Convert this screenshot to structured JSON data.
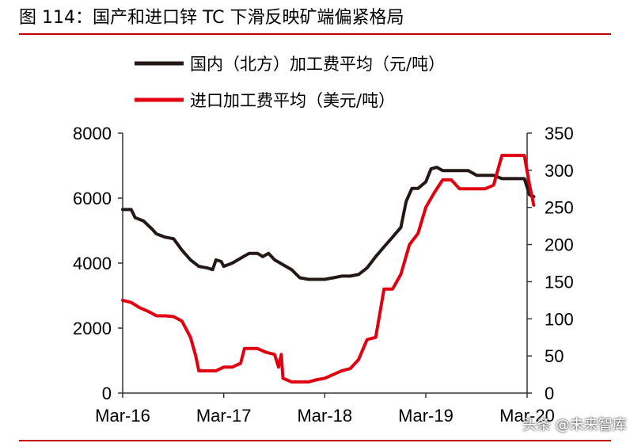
{
  "figure": {
    "title": "图 114：国产和进口锌 TC 下滑反映矿端偏紧格局"
  },
  "watermark": "头条 @未来智库",
  "chart_data": {
    "type": "line",
    "title": "图 114：国产和进口锌 TC 下滑反映矿端偏紧格局",
    "legend_position": "top",
    "x_tick_labels": [
      "Mar-16",
      "Mar-17",
      "Mar-18",
      "Mar-19",
      "Mar-20"
    ],
    "x_range": [
      "2016-03",
      "2020-03"
    ],
    "y_left": {
      "range": [
        0,
        8000
      ],
      "ticks": [
        "0",
        "2000",
        "4000",
        "6000",
        "8000"
      ]
    },
    "y_right": {
      "range": [
        0,
        350
      ],
      "ticks": [
        "0",
        "50",
        "100",
        "150",
        "200",
        "250",
        "300",
        "350"
      ]
    },
    "grid": false,
    "series": [
      {
        "name": "国内（北方）加工费平均（元/吨）",
        "axis": "left",
        "color": "#231815",
        "points": [
          [
            "2016-03-01",
            5650
          ],
          [
            "2016-04-01",
            5650
          ],
          [
            "2016-04-15",
            5400
          ],
          [
            "2016-05-15",
            5300
          ],
          [
            "2016-06-15",
            5050
          ],
          [
            "2016-07-01",
            4900
          ],
          [
            "2016-08-01",
            4800
          ],
          [
            "2016-09-01",
            4750
          ],
          [
            "2016-10-01",
            4400
          ],
          [
            "2016-11-01",
            4100
          ],
          [
            "2016-12-01",
            3900
          ],
          [
            "2017-01-01",
            3850
          ],
          [
            "2017-01-20",
            3800
          ],
          [
            "2017-02-01",
            4100
          ],
          [
            "2017-02-20",
            4050
          ],
          [
            "2017-03-01",
            3900
          ],
          [
            "2017-04-01",
            4000
          ],
          [
            "2017-05-01",
            4150
          ],
          [
            "2017-06-01",
            4300
          ],
          [
            "2017-07-01",
            4300
          ],
          [
            "2017-07-20",
            4200
          ],
          [
            "2017-08-10",
            4300
          ],
          [
            "2017-09-01",
            4100
          ],
          [
            "2017-10-01",
            3950
          ],
          [
            "2017-11-01",
            3800
          ],
          [
            "2017-12-01",
            3550
          ],
          [
            "2018-01-01",
            3500
          ],
          [
            "2018-02-01",
            3500
          ],
          [
            "2018-03-01",
            3500
          ],
          [
            "2018-04-01",
            3550
          ],
          [
            "2018-05-01",
            3600
          ],
          [
            "2018-06-01",
            3600
          ],
          [
            "2018-07-01",
            3650
          ],
          [
            "2018-08-01",
            3850
          ],
          [
            "2018-09-01",
            4200
          ],
          [
            "2018-10-01",
            4500
          ],
          [
            "2018-11-01",
            4800
          ],
          [
            "2018-12-01",
            5100
          ],
          [
            "2018-12-20",
            5900
          ],
          [
            "2019-01-10",
            6300
          ],
          [
            "2019-02-01",
            6300
          ],
          [
            "2019-03-01",
            6500
          ],
          [
            "2019-03-20",
            6900
          ],
          [
            "2019-04-10",
            6950
          ],
          [
            "2019-05-01",
            6850
          ],
          [
            "2019-06-01",
            6850
          ],
          [
            "2019-07-01",
            6850
          ],
          [
            "2019-08-01",
            6850
          ],
          [
            "2019-09-01",
            6700
          ],
          [
            "2019-10-01",
            6700
          ],
          [
            "2019-11-01",
            6700
          ],
          [
            "2019-12-01",
            6600
          ],
          [
            "2020-01-01",
            6600
          ],
          [
            "2020-02-01",
            6600
          ],
          [
            "2020-02-20",
            6600
          ],
          [
            "2020-03-10",
            6100
          ],
          [
            "2020-03-25",
            6050
          ]
        ]
      },
      {
        "name": "进口加工费平均（美元/吨）",
        "axis": "right",
        "color": "#e00010",
        "points": [
          [
            "2016-03-01",
            125
          ],
          [
            "2016-04-01",
            122
          ],
          [
            "2016-05-01",
            115
          ],
          [
            "2016-06-01",
            110
          ],
          [
            "2016-07-01",
            104
          ],
          [
            "2016-08-01",
            104
          ],
          [
            "2016-09-01",
            103
          ],
          [
            "2016-10-01",
            97
          ],
          [
            "2016-11-01",
            75
          ],
          [
            "2016-11-20",
            50
          ],
          [
            "2016-12-01",
            30
          ],
          [
            "2017-01-01",
            30
          ],
          [
            "2017-02-01",
            30
          ],
          [
            "2017-03-01",
            35
          ],
          [
            "2017-04-01",
            35
          ],
          [
            "2017-05-01",
            40
          ],
          [
            "2017-05-15",
            60
          ],
          [
            "2017-07-01",
            60
          ],
          [
            "2017-08-01",
            55
          ],
          [
            "2017-09-01",
            52
          ],
          [
            "2017-09-15",
            35
          ],
          [
            "2017-09-25",
            52
          ],
          [
            "2017-10-01",
            20
          ],
          [
            "2017-11-01",
            15
          ],
          [
            "2017-12-01",
            15
          ],
          [
            "2018-01-01",
            15
          ],
          [
            "2018-02-01",
            18
          ],
          [
            "2018-03-01",
            20
          ],
          [
            "2018-04-01",
            25
          ],
          [
            "2018-05-01",
            30
          ],
          [
            "2018-06-01",
            33
          ],
          [
            "2018-07-01",
            45
          ],
          [
            "2018-08-01",
            72
          ],
          [
            "2018-09-01",
            75
          ],
          [
            "2018-10-01",
            140
          ],
          [
            "2018-11-01",
            140
          ],
          [
            "2018-12-01",
            160
          ],
          [
            "2019-01-01",
            200
          ],
          [
            "2019-02-01",
            215
          ],
          [
            "2019-03-01",
            250
          ],
          [
            "2019-04-01",
            270
          ],
          [
            "2019-05-01",
            287
          ],
          [
            "2019-06-01",
            287
          ],
          [
            "2019-07-01",
            275
          ],
          [
            "2019-08-01",
            275
          ],
          [
            "2019-09-01",
            275
          ],
          [
            "2019-10-01",
            275
          ],
          [
            "2019-11-01",
            280
          ],
          [
            "2019-12-01",
            320
          ],
          [
            "2020-01-01",
            320
          ],
          [
            "2020-02-01",
            320
          ],
          [
            "2020-02-20",
            320
          ],
          [
            "2020-03-10",
            280
          ],
          [
            "2020-03-25",
            253
          ]
        ]
      }
    ]
  }
}
